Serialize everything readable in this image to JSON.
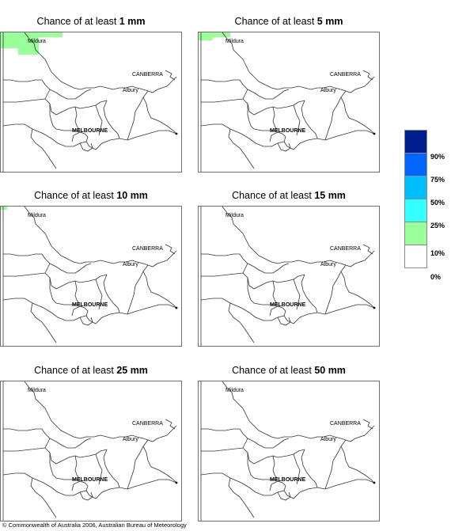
{
  "panel_prefix": "Chance of at least",
  "panels": [
    {
      "amount": "1 mm",
      "fill_region": "far-north-west"
    },
    {
      "amount": "5 mm",
      "fill_region": "far-north-west-small"
    },
    {
      "amount": "10 mm",
      "fill_region": "corner"
    },
    {
      "amount": "15 mm",
      "fill_region": "none"
    },
    {
      "amount": "25 mm",
      "fill_region": "none"
    },
    {
      "amount": "50 mm",
      "fill_region": "none"
    }
  ],
  "places": {
    "mildura": "Mildura",
    "canberra": "CANBERRA",
    "albury": "Albury",
    "melbourne": "MELBOURNE"
  },
  "legend": {
    "colors": [
      "#001f8f",
      "#0066ff",
      "#00bfff",
      "#33ffff",
      "#99ff99",
      "#ffffff"
    ],
    "labels": [
      "90%",
      "75%",
      "50%",
      "25%",
      "10%",
      "0%"
    ]
  },
  "copyright": "© Commonwealth of Australia 2006, Australian Bureau of Meteorology"
}
